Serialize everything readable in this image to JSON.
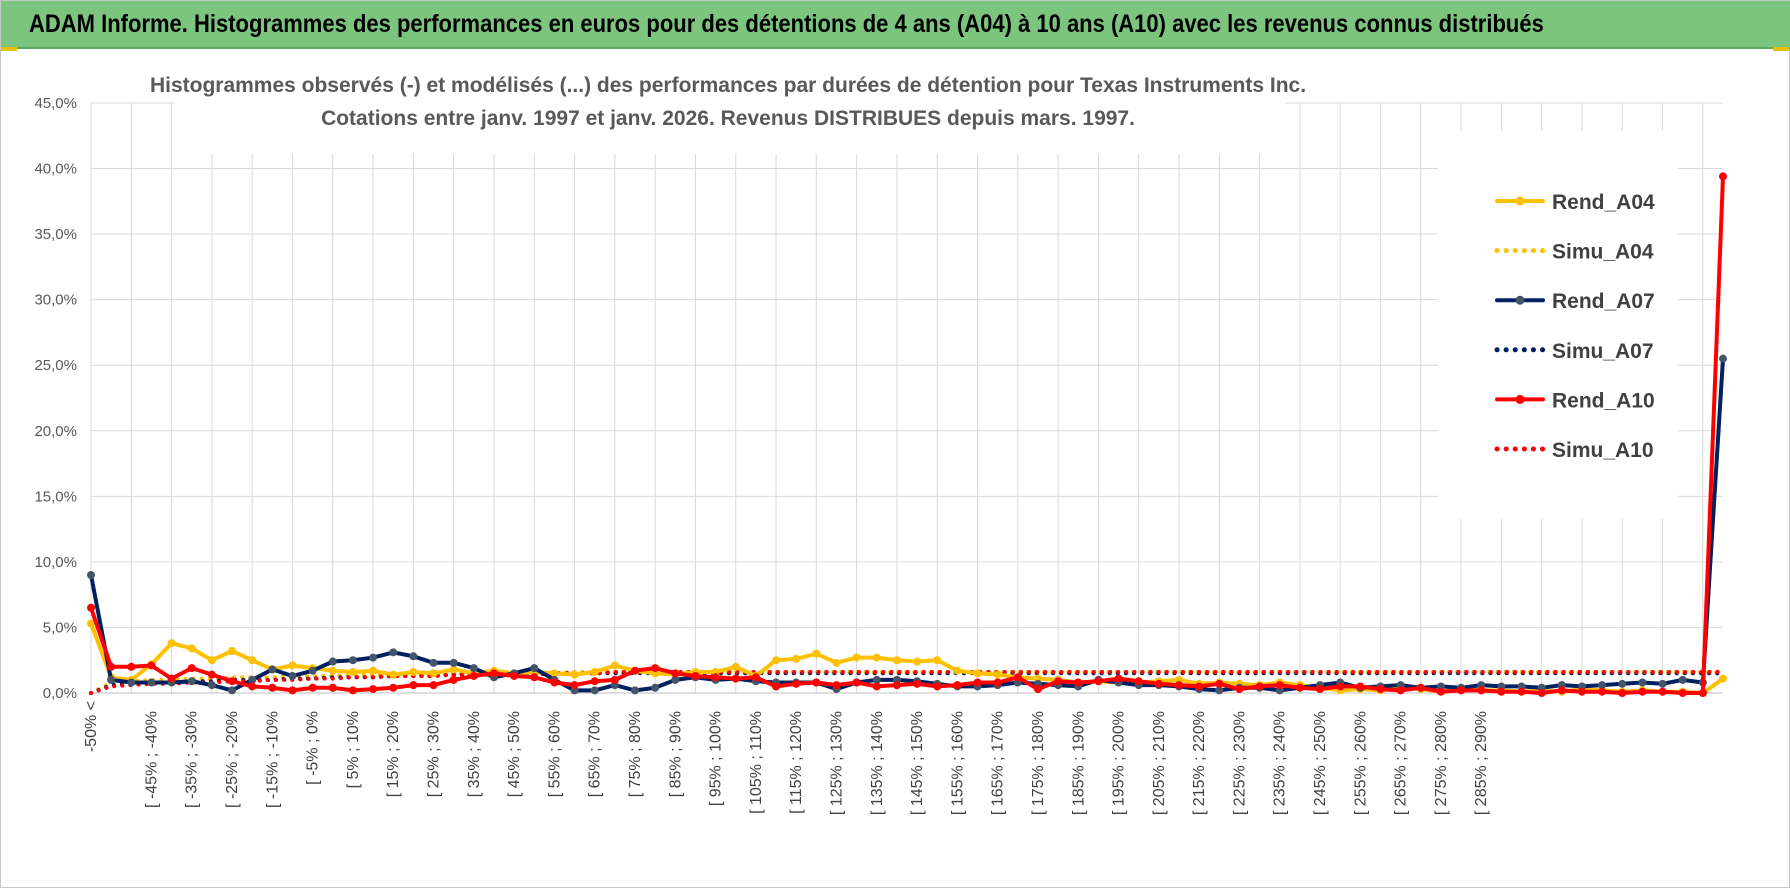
{
  "header": {
    "title": "ADAM Informe. Histogrammes des performances en euros pour des détentions de 4 ans (A04) à 10 ans (A10) avec les revenus connus distribués"
  },
  "colors": {
    "header_bg": "#7cc57e",
    "A04": "#ffc000",
    "A07": "#002060",
    "A07_marker": "#44546a",
    "A10": "#ff0000",
    "grid": "#d9d9d9"
  },
  "chart_data": {
    "type": "line",
    "title_line1": "Histogrammes observés (-) et modélisés (...) des performances par durées de détention pour Texas Instruments Inc.",
    "title_line2": "Cotations entre janv. 1997 et janv. 2026. Revenus DISTRIBUES depuis mars. 1997.",
    "ylim": [
      0,
      45
    ],
    "yticks": [
      0,
      5,
      10,
      15,
      20,
      25,
      30,
      35,
      40,
      45
    ],
    "ytick_labels": [
      "0,0%",
      "5,0%",
      "10,0%",
      "15,0%",
      "20,0%",
      "25,0%",
      "30,0%",
      "35,0%",
      "40,0%",
      "45,0%"
    ],
    "grid": true,
    "legend_position": "right",
    "x_tick_labels": [
      "-50% <",
      "[ -45% ; -40%",
      "[ -35% ; -30%",
      "[ -25% ; -20%",
      "[ -15% ; -10%",
      "[ -5% ; 0%",
      "[ 5% ; 10%",
      "[ 15% ; 20%",
      "[ 25% ; 30%",
      "[ 35% ; 40%",
      "[ 45% ; 50%",
      "[ 55% ; 60%",
      "[ 65% ; 70%",
      "[ 75% ; 80%",
      "[ 85% ; 90%",
      "[ 95% ; 100%",
      "[ 105% ; 110%",
      "[ 115% ; 120%",
      "[ 125% ; 130%",
      "[ 135% ; 140%",
      "[ 145% ; 150%",
      "[ 155% ; 160%",
      "[ 165% ; 170%",
      "[ 175% ; 180%",
      "[ 185% ; 190%",
      "[ 195% ; 200%",
      "[ 205% ; 210%",
      "[ 215% ; 220%",
      "[ 225% ; 230%",
      "[ 235% ; 240%",
      "[ 245% ; 250%",
      "[ 255% ; 260%",
      "[ 265% ; 270%",
      "[ 275% ; 280%",
      "[ 285% ; 290%"
    ],
    "series": [
      {
        "name": "Rend_A04",
        "style": "solid",
        "color": "#ffc000",
        "marker": true,
        "values": [
          5.3,
          1.2,
          1.0,
          2.2,
          3.8,
          3.4,
          2.5,
          3.2,
          2.5,
          1.8,
          2.1,
          1.9,
          1.7,
          1.6,
          1.7,
          1.4,
          1.6,
          1.5,
          1.8,
          1.5,
          1.7,
          1.5,
          1.6,
          1.5,
          1.4,
          1.6,
          2.1,
          1.7,
          1.5,
          1.4,
          1.6,
          1.6,
          2.0,
          1.3,
          2.5,
          2.6,
          3.0,
          2.3,
          2.7,
          2.7,
          2.5,
          2.4,
          2.5,
          1.7,
          1.5,
          1.4,
          1.2,
          1.1,
          1.0,
          0.8,
          0.9,
          0.8,
          0.8,
          0.9,
          1.0,
          0.7,
          0.8,
          0.7,
          0.6,
          0.8,
          0.6,
          0.4,
          0.2,
          0.3,
          0.2,
          0.4,
          0.3,
          0.1,
          0.3,
          0.2,
          0.2,
          0.1,
          0.2,
          0.1,
          0.3,
          0.2,
          0.1,
          0.2,
          0.1,
          0.1,
          0.0,
          1.1
        ]
      },
      {
        "name": "Simu_A04",
        "style": "dotted",
        "color": "#ffc000",
        "marker": false,
        "values": [
          0.0,
          0.8,
          0.9,
          1.0,
          1.0,
          1.1,
          1.1,
          1.2,
          1.2,
          1.2,
          1.3,
          1.3,
          1.3,
          1.4,
          1.4,
          1.4,
          1.4,
          1.5,
          1.5,
          1.5,
          1.5,
          1.5,
          1.5,
          1.5,
          1.6,
          1.6,
          1.6,
          1.6,
          1.6,
          1.6,
          1.6,
          1.6,
          1.6,
          1.6,
          1.6,
          1.6,
          1.6,
          1.6,
          1.6,
          1.6,
          1.6,
          1.6,
          1.6,
          1.6,
          1.6,
          1.6,
          1.6,
          1.6,
          1.6,
          1.6,
          1.6,
          1.6,
          1.6,
          1.6,
          1.6,
          1.6,
          1.6,
          1.6,
          1.6,
          1.6,
          1.6,
          1.6,
          1.6,
          1.6,
          1.6,
          1.6,
          1.6,
          1.6,
          1.6,
          1.6,
          1.6,
          1.6,
          1.6,
          1.6,
          1.6,
          1.6,
          1.6,
          1.6,
          1.6,
          1.6,
          1.6,
          1.6
        ]
      },
      {
        "name": "Rend_A07",
        "style": "solid",
        "color": "#002060",
        "marker": true,
        "values": [
          9.0,
          1.0,
          0.8,
          0.8,
          0.8,
          0.9,
          0.6,
          0.2,
          1.0,
          1.8,
          1.3,
          1.7,
          2.4,
          2.5,
          2.7,
          3.1,
          2.8,
          2.3,
          2.3,
          1.9,
          1.2,
          1.5,
          1.9,
          1.0,
          0.2,
          0.2,
          0.6,
          0.2,
          0.4,
          1.0,
          1.2,
          1.0,
          1.1,
          0.9,
          0.8,
          0.8,
          0.8,
          0.3,
          0.8,
          1.0,
          1.0,
          0.9,
          0.7,
          0.5,
          0.5,
          0.6,
          0.8,
          0.7,
          0.6,
          0.5,
          1.0,
          0.8,
          0.6,
          0.6,
          0.5,
          0.3,
          0.2,
          0.4,
          0.4,
          0.2,
          0.4,
          0.6,
          0.8,
          0.4,
          0.5,
          0.6,
          0.4,
          0.5,
          0.4,
          0.6,
          0.5,
          0.5,
          0.4,
          0.6,
          0.5,
          0.6,
          0.7,
          0.8,
          0.7,
          1.0,
          0.8,
          25.5
        ]
      },
      {
        "name": "Simu_A07",
        "style": "dotted",
        "color": "#002060",
        "marker": false,
        "values": [
          0.0,
          0.6,
          0.7,
          0.8,
          0.8,
          0.9,
          0.9,
          1.0,
          1.0,
          1.0,
          1.1,
          1.1,
          1.2,
          1.2,
          1.2,
          1.3,
          1.3,
          1.3,
          1.4,
          1.4,
          1.4,
          1.4,
          1.4,
          1.5,
          1.5,
          1.5,
          1.5,
          1.5,
          1.5,
          1.5,
          1.5,
          1.5,
          1.5,
          1.5,
          1.5,
          1.5,
          1.5,
          1.5,
          1.5,
          1.5,
          1.5,
          1.5,
          1.5,
          1.5,
          1.5,
          1.5,
          1.5,
          1.5,
          1.5,
          1.5,
          1.5,
          1.5,
          1.5,
          1.5,
          1.5,
          1.5,
          1.5,
          1.5,
          1.5,
          1.5,
          1.5,
          1.5,
          1.5,
          1.5,
          1.5,
          1.5,
          1.5,
          1.5,
          1.5,
          1.5,
          1.5,
          1.5,
          1.5,
          1.5,
          1.5,
          1.5,
          1.5,
          1.5,
          1.5,
          1.5,
          1.5,
          1.5
        ]
      },
      {
        "name": "Rend_A10",
        "style": "solid",
        "color": "#ff0000",
        "marker": true,
        "values": [
          6.5,
          2.0,
          2.0,
          2.1,
          1.1,
          1.9,
          1.4,
          0.9,
          0.5,
          0.4,
          0.2,
          0.4,
          0.4,
          0.2,
          0.3,
          0.4,
          0.6,
          0.6,
          1.0,
          1.3,
          1.5,
          1.3,
          1.2,
          0.8,
          0.6,
          0.9,
          1.0,
          1.7,
          1.9,
          1.5,
          1.3,
          1.2,
          1.1,
          1.2,
          0.5,
          0.7,
          0.8,
          0.6,
          0.8,
          0.5,
          0.6,
          0.7,
          0.5,
          0.6,
          0.8,
          0.8,
          1.2,
          0.3,
          0.9,
          0.8,
          0.9,
          1.1,
          0.9,
          0.7,
          0.6,
          0.5,
          0.7,
          0.3,
          0.5,
          0.6,
          0.4,
          0.3,
          0.5,
          0.5,
          0.3,
          0.2,
          0.4,
          0.1,
          0.2,
          0.2,
          0.1,
          0.1,
          0.0,
          0.2,
          0.1,
          0.1,
          0.0,
          0.1,
          0.1,
          0.0,
          0.0,
          39.4
        ]
      },
      {
        "name": "Simu_A10",
        "style": "dotted",
        "color": "#ff0000",
        "marker": false,
        "values": [
          0.0,
          0.5,
          0.6,
          0.7,
          0.7,
          0.8,
          0.8,
          0.9,
          0.9,
          1.0,
          1.0,
          1.1,
          1.1,
          1.2,
          1.2,
          1.3,
          1.3,
          1.3,
          1.4,
          1.4,
          1.4,
          1.5,
          1.5,
          1.5,
          1.5,
          1.5,
          1.6,
          1.6,
          1.6,
          1.6,
          1.6,
          1.6,
          1.6,
          1.6,
          1.6,
          1.6,
          1.6,
          1.6,
          1.6,
          1.6,
          1.6,
          1.6,
          1.6,
          1.6,
          1.6,
          1.6,
          1.6,
          1.6,
          1.6,
          1.6,
          1.6,
          1.6,
          1.6,
          1.6,
          1.6,
          1.6,
          1.6,
          1.6,
          1.6,
          1.6,
          1.6,
          1.6,
          1.6,
          1.6,
          1.6,
          1.6,
          1.6,
          1.6,
          1.6,
          1.6,
          1.6,
          1.6,
          1.6,
          1.6,
          1.6,
          1.6,
          1.6,
          1.6,
          1.6,
          1.6,
          1.6,
          1.6
        ]
      }
    ]
  }
}
